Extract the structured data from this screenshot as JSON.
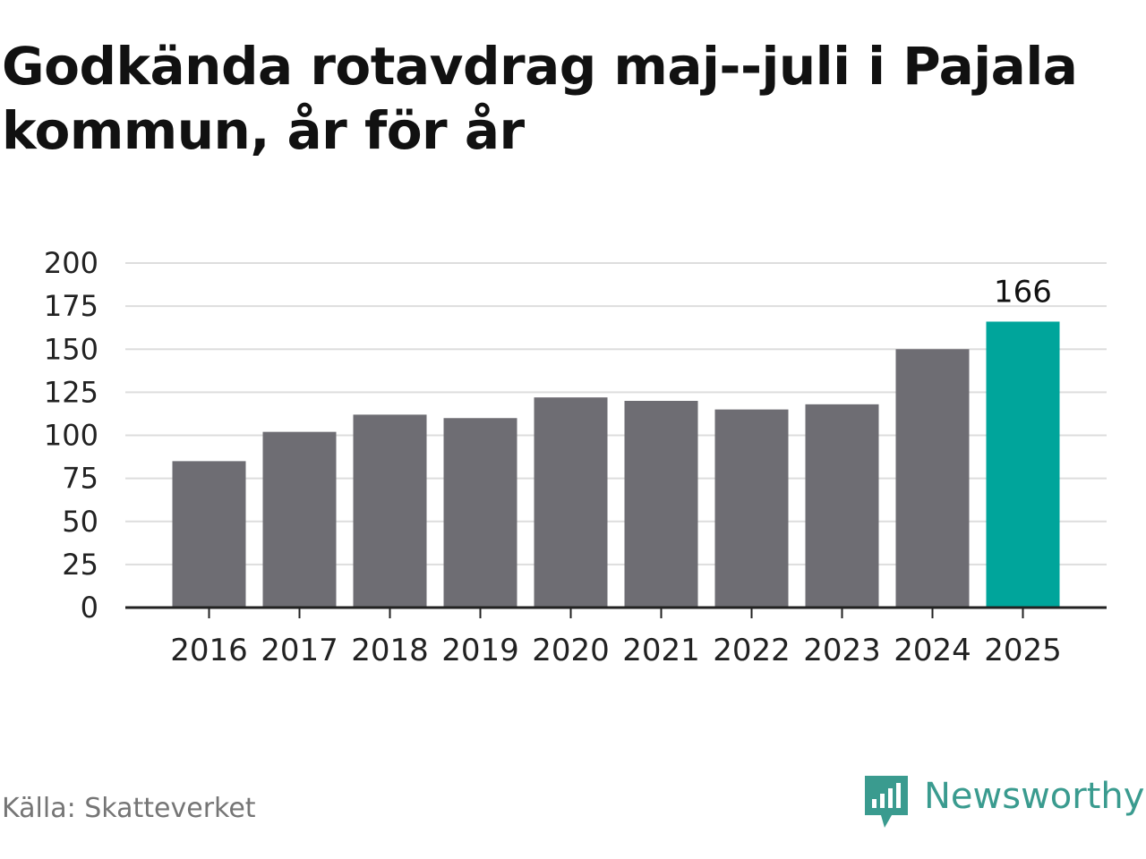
{
  "title": "Godkända rotavdrag maj--juli i Pajala kommun, år för år",
  "source": "Källa: Skatteverket",
  "brand": {
    "name": "Newsworthy",
    "icon": "newsworthy-logo-icon"
  },
  "colors": {
    "bar": "#6e6d73",
    "highlight": "#00a59b",
    "grid": "#dddddd",
    "axis": "#222222",
    "text": "#222222",
    "brand": "#3a9b8f"
  },
  "chart_data": {
    "type": "bar",
    "title": "Godkända rotavdrag maj--juli i Pajala kommun, år för år",
    "xlabel": "",
    "ylabel": "",
    "categories": [
      "2016",
      "2017",
      "2018",
      "2019",
      "2020",
      "2021",
      "2022",
      "2023",
      "2024",
      "2025"
    ],
    "values": [
      85,
      102,
      112,
      110,
      122,
      120,
      115,
      118,
      150,
      166
    ],
    "ylim": [
      0,
      200
    ],
    "yticks": [
      0,
      25,
      50,
      75,
      100,
      125,
      150,
      175,
      200
    ],
    "grid": true,
    "highlight_index": 9,
    "data_labels": [
      {
        "index": 9,
        "text": "166"
      }
    ]
  }
}
